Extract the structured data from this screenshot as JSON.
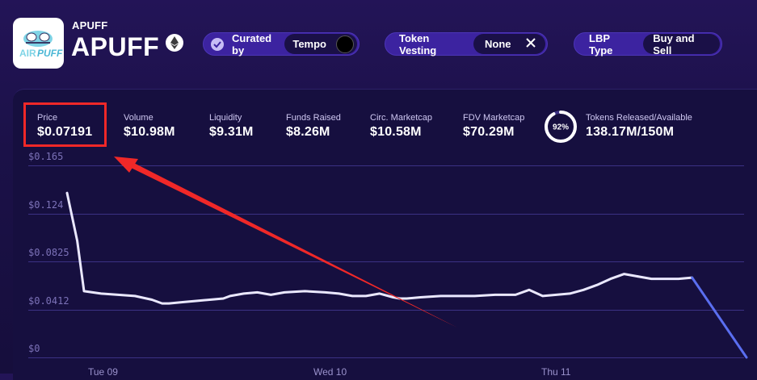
{
  "token": {
    "symbol_small": "APUFF",
    "symbol_large": "APUFF",
    "logo_text_left": "AIR",
    "logo_text_right": "PUFF",
    "chain_icon": "ethereum-icon"
  },
  "pills": {
    "curated": {
      "label": "Curated by",
      "value": "Tempo"
    },
    "vesting": {
      "label": "Token Vesting",
      "value": "None"
    },
    "lbp": {
      "label": "LBP Type",
      "value": "Buy and Sell"
    }
  },
  "stats": [
    {
      "label": "Price",
      "value": "$0.07191"
    },
    {
      "label": "Volume",
      "value": "$10.98M"
    },
    {
      "label": "Liquidity",
      "value": "$9.31M"
    },
    {
      "label": "Funds Raised",
      "value": "$8.26M"
    },
    {
      "label": "Circ. Marketcap",
      "value": "$10.58M"
    },
    {
      "label": "FDV Marketcap",
      "value": "$70.29M"
    }
  ],
  "release": {
    "percent_label": "92%",
    "percent": 0.92,
    "label": "Tokens Released/Available",
    "value": "138.17M/150M"
  },
  "colors": {
    "accent": "#3c23a0",
    "line": "#eae8ff",
    "projection": "#5a6ef0",
    "highlight": "#f02828"
  },
  "chart_data": {
    "type": "line",
    "y_ticks": [
      "$0.165",
      "$0.124",
      "$0.0825",
      "$0.0412",
      "$0"
    ],
    "ylim": [
      0,
      0.165
    ],
    "x_ticks": [
      "Tue 09",
      "Wed 10",
      "Thu 11"
    ],
    "series": [
      {
        "x": [
          0,
          1.5,
          2.5,
          5,
          7.5,
          10,
          12.5,
          14,
          15,
          17,
          19,
          21,
          23,
          24,
          25,
          26,
          28,
          30,
          32,
          35,
          38,
          40,
          42,
          44,
          46,
          48,
          49,
          50,
          52,
          55,
          58,
          60,
          63,
          66,
          68,
          70,
          72,
          74,
          76,
          78,
          80,
          82,
          84
        ],
        "values": [
          0.134,
          0.095,
          0.054,
          0.052,
          0.051,
          0.05,
          0.047,
          0.044,
          0.044,
          0.045,
          0.046,
          0.047,
          0.048,
          0.05,
          0.051,
          0.052,
          0.053,
          0.051,
          0.053,
          0.054,
          0.053,
          0.052,
          0.05,
          0.05,
          0.052,
          0.049,
          0.048,
          0.048,
          0.049,
          0.05,
          0.05,
          0.05,
          0.051,
          0.051,
          0.055,
          0.05,
          0.051,
          0.052,
          0.055,
          0.059,
          0.064,
          0.068,
          0.066
        ]
      },
      {
        "x": [
          84,
          86,
          88,
          90,
          92
        ],
        "values": [
          0.066,
          0.064,
          0.064,
          0.064,
          0.065
        ]
      },
      {
        "x": [
          92,
          100
        ],
        "values": [
          0.065,
          0.0
        ]
      }
    ]
  },
  "annotation": {
    "type": "arrow",
    "from": "chart-area",
    "to": "price-stat"
  }
}
